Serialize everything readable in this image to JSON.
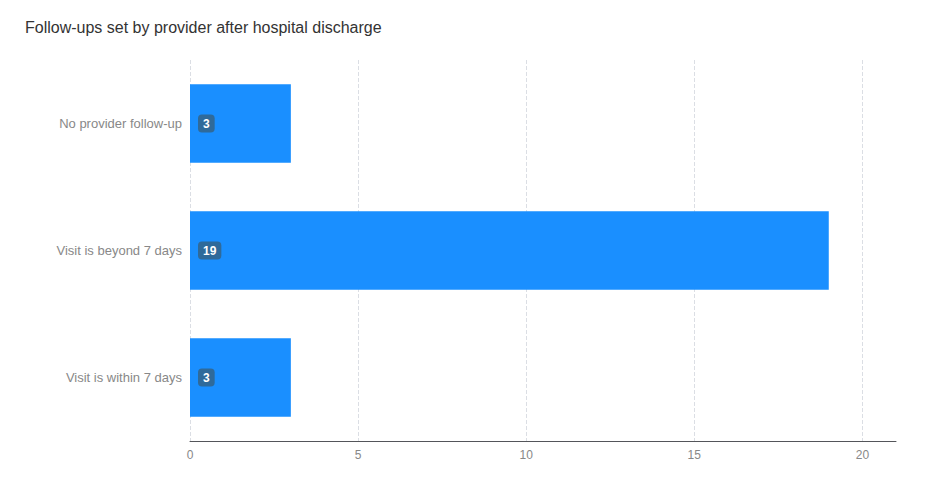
{
  "chart_data": {
    "type": "bar",
    "orientation": "horizontal",
    "title": "Follow-ups set by provider after hospital discharge",
    "categories": [
      "No provider follow-up",
      "Visit is beyond 7 days",
      "Visit is within 7 days"
    ],
    "values": [
      3,
      19,
      3
    ],
    "color": "#1A8FFF",
    "xlim": [
      0,
      21
    ],
    "xticks": [
      0,
      5,
      10,
      15,
      20
    ],
    "grid": true,
    "data_labels": true
  }
}
